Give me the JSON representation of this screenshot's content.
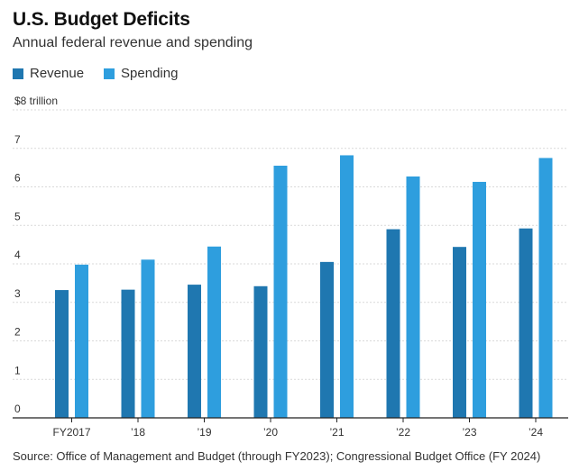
{
  "colors": {
    "revenue": "#1f77b0",
    "spending": "#2e9ede",
    "grid": "#d9d9d9",
    "axis": "#222222"
  },
  "chart_data": {
    "type": "bar",
    "title": "U.S. Budget Deficits",
    "subtitle": "Annual federal revenue and spending",
    "categories": [
      "FY2017",
      "’18",
      "’19",
      "’20",
      "’21",
      "’22",
      "’23",
      "’24"
    ],
    "series": [
      {
        "name": "Revenue",
        "values": [
          3.32,
          3.33,
          3.46,
          3.42,
          4.05,
          4.9,
          4.44,
          4.92
        ]
      },
      {
        "name": "Spending",
        "values": [
          3.98,
          4.11,
          4.45,
          6.55,
          6.82,
          6.27,
          6.13,
          6.75
        ]
      }
    ],
    "yticks": [
      "0",
      "1",
      "2",
      "3",
      "4",
      "5",
      "6",
      "7",
      "$8 trillion"
    ],
    "ylim": [
      0,
      8
    ],
    "grid": true,
    "legend_position": "top-left",
    "source": "Source: Office of Management and Budget (through FY2023); Congressional Budget Office (FY 2024)"
  }
}
